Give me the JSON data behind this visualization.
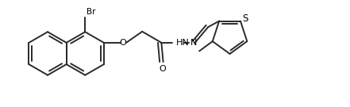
{
  "background_color": "#ffffff",
  "line_color": "#2a2a2a",
  "text_color": "#000000",
  "lw": 1.4,
  "figsize": [
    4.41,
    1.35
  ],
  "dpi": 100,
  "xlim": [
    0,
    10.0
  ],
  "ylim": [
    0,
    3.0
  ]
}
